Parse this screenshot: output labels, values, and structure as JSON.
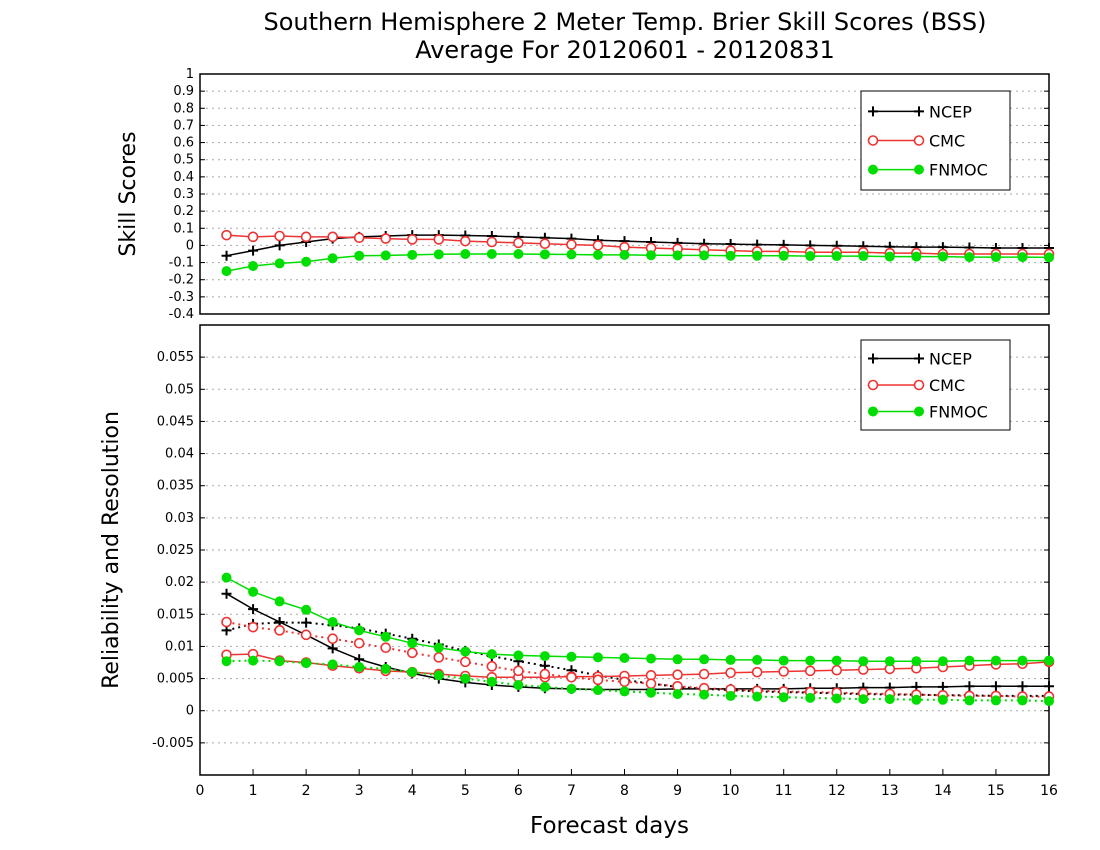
{
  "title_line1": "Southern Hemisphere 2 Meter Temp. Brier Skill Scores (BSS)",
  "title_line2": "Average For 20120601 - 20120831",
  "chart_data": [
    {
      "type": "line",
      "ylabel": "Skill Scores",
      "xlabel": "",
      "xlim": [
        0,
        16
      ],
      "ylim": [
        -0.4,
        1
      ],
      "yticks": [
        "-0.4",
        "-0.3",
        "-0.2",
        "-0.1",
        "0",
        "0.1",
        "0.2",
        "0.3",
        "0.4",
        "0.5",
        "0.6",
        "0.7",
        "0.8",
        "0.9",
        "1"
      ],
      "grid": true,
      "legend_position": "top-right",
      "x": [
        0.5,
        1,
        1.5,
        2,
        2.5,
        3,
        3.5,
        4,
        4.5,
        5,
        5.5,
        6,
        6.5,
        7,
        7.5,
        8,
        8.5,
        9,
        9.5,
        10,
        10.5,
        11,
        11.5,
        12,
        12.5,
        13,
        13.5,
        14,
        14.5,
        15,
        15.5,
        16
      ],
      "series": [
        {
          "name": "NCEP",
          "color": "#000000",
          "marker": "plus",
          "dash": "solid",
          "values": [
            -0.06,
            -0.03,
            0.0,
            0.02,
            0.04,
            0.05,
            0.055,
            0.06,
            0.06,
            0.058,
            0.055,
            0.05,
            0.045,
            0.04,
            0.03,
            0.025,
            0.02,
            0.015,
            0.01,
            0.008,
            0.005,
            0.003,
            0.0,
            -0.002,
            -0.005,
            -0.008,
            -0.01,
            -0.01,
            -0.012,
            -0.015,
            -0.015,
            -0.015
          ]
        },
        {
          "name": "CMC",
          "color": "#ee3333",
          "marker": "circle",
          "dash": "solid",
          "values": [
            0.06,
            0.05,
            0.055,
            0.05,
            0.05,
            0.045,
            0.04,
            0.035,
            0.035,
            0.025,
            0.02,
            0.015,
            0.01,
            0.005,
            0.0,
            -0.01,
            -0.015,
            -0.02,
            -0.025,
            -0.03,
            -0.035,
            -0.035,
            -0.04,
            -0.04,
            -0.04,
            -0.045,
            -0.045,
            -0.05,
            -0.05,
            -0.05,
            -0.05,
            -0.05
          ]
        },
        {
          "name": "FNMOC",
          "color": "#00dd00",
          "marker": "dot",
          "dash": "solid",
          "values": [
            -0.15,
            -0.12,
            -0.105,
            -0.095,
            -0.075,
            -0.06,
            -0.058,
            -0.055,
            -0.052,
            -0.05,
            -0.05,
            -0.05,
            -0.052,
            -0.053,
            -0.055,
            -0.055,
            -0.057,
            -0.058,
            -0.058,
            -0.06,
            -0.06,
            -0.06,
            -0.062,
            -0.062,
            -0.062,
            -0.065,
            -0.065,
            -0.065,
            -0.068,
            -0.068,
            -0.068,
            -0.07
          ]
        }
      ]
    },
    {
      "type": "line",
      "ylabel": "Reliability and Resolution",
      "xlabel": "Forecast days",
      "xlim": [
        0,
        16
      ],
      "ylim": [
        -0.01,
        0.06
      ],
      "yticks": [
        "-0.005",
        "0",
        "0.005",
        "0.01",
        "0.015",
        "0.02",
        "0.025",
        "0.03",
        "0.035",
        "0.04",
        "0.045",
        "0.05",
        "0.055"
      ],
      "xticks": [
        "0",
        "1",
        "2",
        "3",
        "4",
        "5",
        "6",
        "7",
        "8",
        "9",
        "10",
        "11",
        "12",
        "13",
        "14",
        "15",
        "16"
      ],
      "grid": true,
      "legend_position": "top-right",
      "x": [
        0.5,
        1,
        1.5,
        2,
        2.5,
        3,
        3.5,
        4,
        4.5,
        5,
        5.5,
        6,
        6.5,
        7,
        7.5,
        8,
        8.5,
        9,
        9.5,
        10,
        10.5,
        11,
        11.5,
        12,
        12.5,
        13,
        13.5,
        14,
        14.5,
        15,
        15.5,
        16
      ],
      "series": [
        {
          "name": "NCEP",
          "color": "#000000",
          "marker": "plus",
          "dash": "solid",
          "values": [
            0.0182,
            0.0158,
            0.0138,
            0.0118,
            0.0097,
            0.008,
            0.0068,
            0.0058,
            0.005,
            0.0044,
            0.004,
            0.0037,
            0.0035,
            0.0034,
            0.0033,
            0.0033,
            0.0033,
            0.0034,
            0.0034,
            0.0034,
            0.0034,
            0.0034,
            0.0035,
            0.0035,
            0.0036,
            0.0036,
            0.0037,
            0.0037,
            0.0038,
            0.0038,
            0.0038,
            0.0038
          ]
        },
        {
          "legend": false,
          "color": "#000000",
          "marker": "plus",
          "dash": "dotted",
          "values": [
            0.0125,
            0.0135,
            0.0137,
            0.0137,
            0.0133,
            0.0128,
            0.012,
            0.0112,
            0.0103,
            0.0093,
            0.0085,
            0.0077,
            0.007,
            0.0063,
            0.0055,
            0.0048,
            0.0042,
            0.0037,
            0.0034,
            0.0032,
            0.003,
            0.0029,
            0.0028,
            0.0027,
            0.0026,
            0.0025,
            0.0025,
            0.0024,
            0.0024,
            0.0023,
            0.0023,
            0.0023
          ]
        },
        {
          "name": "CMC",
          "color": "#ee3333",
          "marker": "circle",
          "dash": "solid",
          "values": [
            0.0087,
            0.0088,
            0.0078,
            0.0075,
            0.007,
            0.0066,
            0.0062,
            0.006,
            0.0057,
            0.0054,
            0.0052,
            0.0052,
            0.0052,
            0.0053,
            0.0053,
            0.0054,
            0.0055,
            0.0056,
            0.0057,
            0.0059,
            0.006,
            0.0061,
            0.0062,
            0.0063,
            0.0064,
            0.0065,
            0.0066,
            0.0068,
            0.007,
            0.0072,
            0.0073,
            0.0076
          ]
        },
        {
          "legend": false,
          "color": "#ee3333",
          "marker": "circle",
          "dash": "dotted",
          "values": [
            0.0138,
            0.013,
            0.0125,
            0.0118,
            0.0112,
            0.0105,
            0.0098,
            0.009,
            0.0083,
            0.0076,
            0.0069,
            0.0062,
            0.0057,
            0.0052,
            0.0048,
            0.0045,
            0.0042,
            0.0038,
            0.0035,
            0.0033,
            0.0031,
            0.003,
            0.0029,
            0.0028,
            0.0027,
            0.0026,
            0.0025,
            0.0024,
            0.0023,
            0.0023,
            0.0022,
            0.0022
          ]
        },
        {
          "name": "FNMOC",
          "color": "#00dd00",
          "marker": "dot",
          "dash": "solid",
          "values": [
            0.0207,
            0.0185,
            0.017,
            0.0157,
            0.0138,
            0.0125,
            0.0115,
            0.0105,
            0.0098,
            0.0092,
            0.0088,
            0.0086,
            0.0085,
            0.0084,
            0.0083,
            0.0082,
            0.0081,
            0.008,
            0.008,
            0.0079,
            0.0079,
            0.0078,
            0.0078,
            0.0078,
            0.0077,
            0.0077,
            0.0077,
            0.0077,
            0.0078,
            0.0078,
            0.0078,
            0.0078
          ]
        },
        {
          "legend": false,
          "color": "#00dd00",
          "marker": "dot",
          "dash": "dotted",
          "values": [
            0.0077,
            0.0078,
            0.0077,
            0.0074,
            0.0072,
            0.0068,
            0.0065,
            0.006,
            0.0055,
            0.005,
            0.0045,
            0.004,
            0.0037,
            0.0034,
            0.0032,
            0.003,
            0.0028,
            0.0026,
            0.0025,
            0.0023,
            0.0022,
            0.0021,
            0.002,
            0.0019,
            0.0018,
            0.0018,
            0.0017,
            0.0017,
            0.0016,
            0.0016,
            0.0016,
            0.0015
          ]
        }
      ]
    }
  ]
}
